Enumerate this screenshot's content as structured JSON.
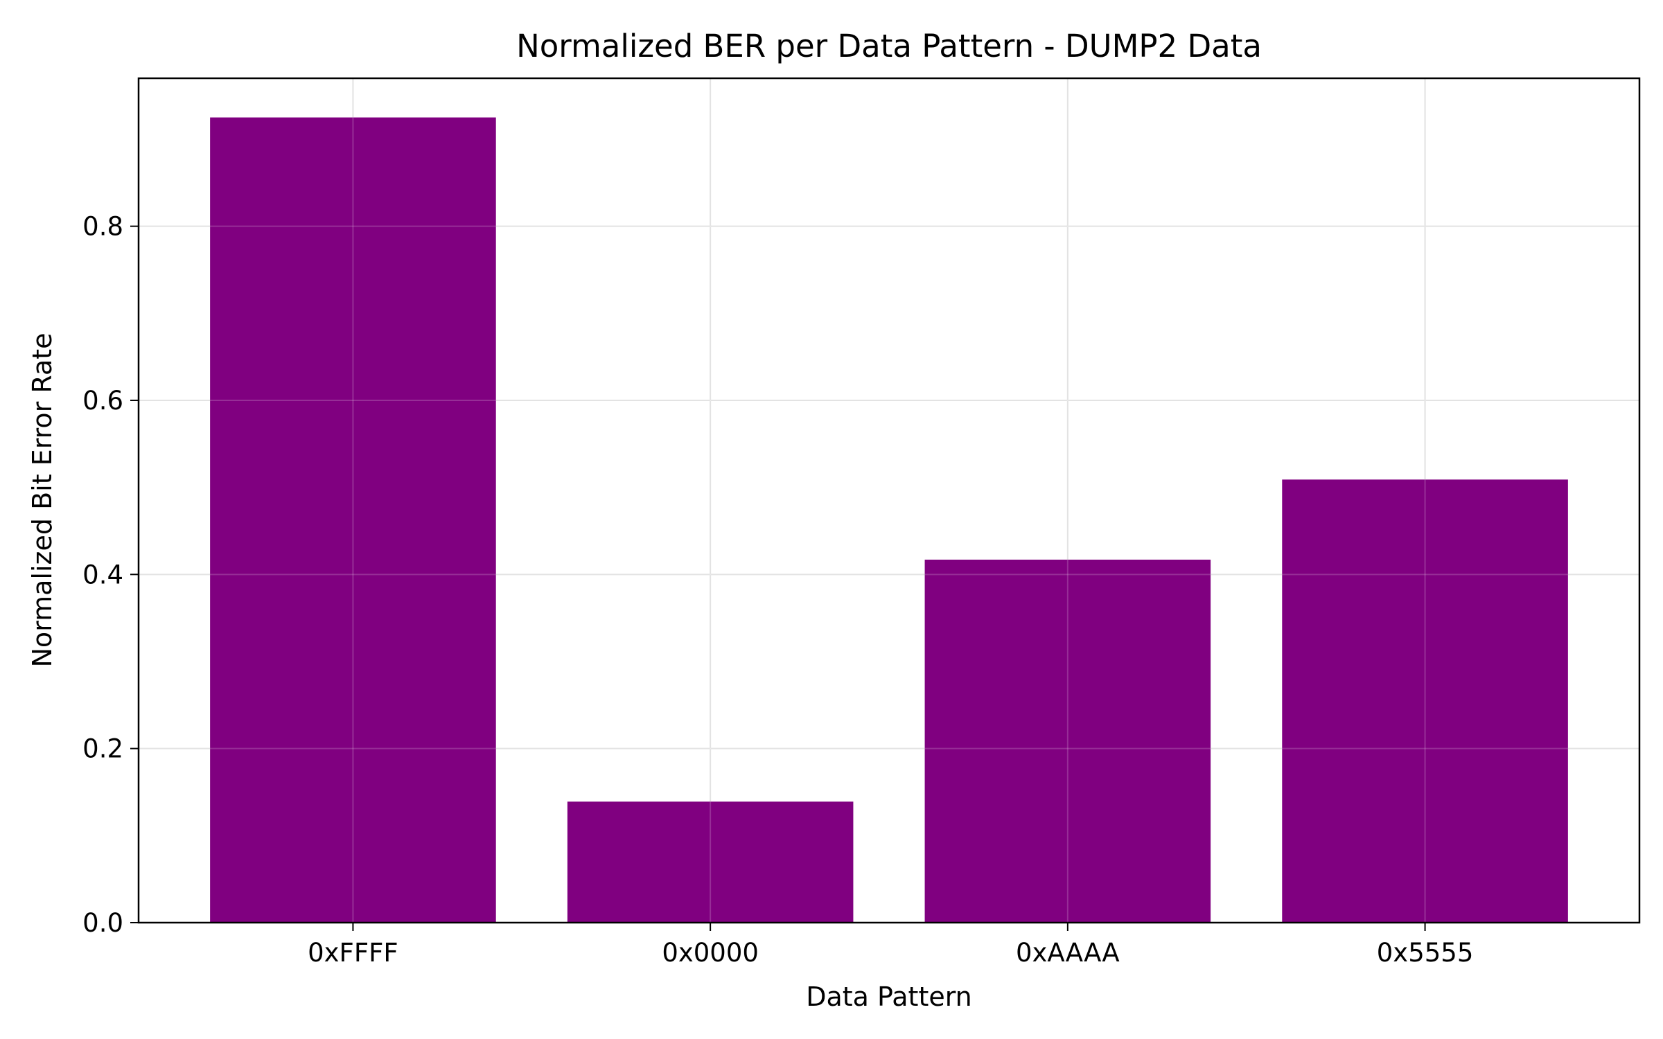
{
  "chart_data": {
    "type": "bar",
    "title": "Normalized BER per Data Pattern - DUMP2 Data",
    "xlabel": "Data Pattern",
    "ylabel": "Normalized Bit Error Rate",
    "categories": [
      "0xFFFF",
      "0x0000",
      "0xAAAA",
      "0x5555"
    ],
    "values": [
      0.925,
      0.139,
      0.417,
      0.509
    ],
    "ylim": [
      0,
      0.97
    ],
    "yticks": [
      0.0,
      0.2,
      0.4,
      0.6,
      0.8
    ],
    "ytick_labels": [
      "0.0",
      "0.2",
      "0.4",
      "0.6",
      "0.8"
    ],
    "grid": true,
    "bar_color": "#800080",
    "grid_color": "#dddddd"
  }
}
